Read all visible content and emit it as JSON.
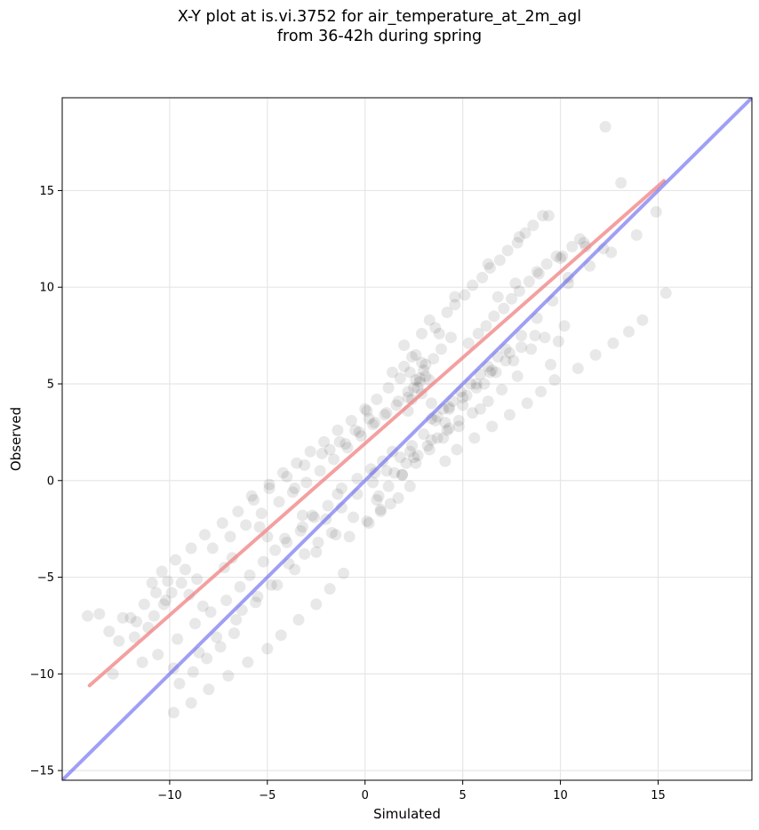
{
  "chart_data": {
    "type": "scatter",
    "title": [
      "X-Y plot at is.vi.3752 for air_temperature_at_2m_agl",
      "from 36-42h during spring"
    ],
    "xlabel": "Simulated",
    "ylabel": "Observed",
    "xlim": [
      -15.5,
      19.8
    ],
    "ylim": [
      -15.5,
      19.8
    ],
    "xticks": [
      -10,
      -5,
      0,
      5,
      10,
      15
    ],
    "yticks": [
      -15,
      -10,
      -5,
      0,
      5,
      10,
      15
    ],
    "xtick_labels": [
      "−10",
      "−5",
      "0",
      "5",
      "10",
      "15"
    ],
    "ytick_labels": [
      "−15",
      "−10",
      "−5",
      "0",
      "5",
      "10",
      "15"
    ],
    "grid": true,
    "colors": {
      "points": "#000000",
      "fit_line": "#f08080",
      "identity_line": "#6b6bf0"
    },
    "fit_line": {
      "x": [
        -14.1,
        15.3
      ],
      "y": [
        -10.6,
        15.5
      ]
    },
    "identity_line": {
      "x": [
        -15.5,
        19.8
      ],
      "y": [
        -15.5,
        19.8
      ]
    },
    "series": [
      {
        "x": [
          12.3,
          15.4,
          14.9,
          13.1,
          13.9,
          12.6,
          11.2,
          10.4,
          9.8,
          9.9,
          9.5,
          -14.2,
          -13.6,
          -13.1,
          -12.4,
          -11.8,
          -11.1,
          -10.8,
          -10.3,
          -9.9,
          -9.4,
          -9.0,
          -8.3,
          -12.9,
          -11.4,
          -10.6,
          -9.6,
          -8.7,
          -7.9,
          -7.1,
          -6.4,
          -5.9,
          -5.2,
          -4.6,
          -4.1,
          -3.2,
          -2.7,
          -7.8,
          -6.9,
          -6.1,
          -5.3,
          -4.4,
          -3.7,
          -3.0,
          -2.3,
          -1.6,
          -0.9,
          -0.2,
          -5.8,
          -4.9,
          -4.2,
          -3.5,
          -2.8,
          -2.1,
          -1.4,
          -0.7,
          0.0,
          0.6,
          1.2,
          1.8,
          0.4,
          1.1,
          1.7,
          2.2,
          2.6,
          3.0,
          3.5,
          3.9,
          4.4,
          2.0,
          2.4,
          2.8,
          2.3,
          2.5,
          2.9,
          3.1,
          3.6,
          3.3,
          3.8,
          4.2,
          4.6,
          5.1,
          5.5,
          6.0,
          6.4,
          6.9,
          7.3,
          7.8,
          8.2,
          8.6,
          9.1,
          5.3,
          5.8,
          6.2,
          6.6,
          7.1,
          7.5,
          7.9,
          8.4,
          8.9,
          9.3,
          10.1,
          10.6,
          11.0,
          3.4,
          4.0,
          4.5,
          4.9,
          5.4,
          5.9,
          6.3,
          6.8,
          7.2,
          1.5,
          2.1,
          2.7,
          3.2,
          3.7,
          4.3,
          4.8,
          -1.2,
          -0.4,
          0.3,
          0.9,
          1.4,
          -1.9,
          -2.6,
          -3.3,
          -4.0,
          -1.0,
          -0.3,
          0.5,
          1.0,
          1.6,
          2.2,
          2.7,
          3.3,
          0.1,
          0.8,
          1.3,
          -3.9,
          -3.1,
          -2.4,
          -1.7,
          -6.7,
          -7.4,
          -8.1,
          -8.8,
          -9.5,
          -6.3,
          -5.5,
          -4.8,
          -9.2,
          -10.1,
          -10.7,
          -11.3,
          -12.0,
          -9.8,
          -8.5,
          -7.6,
          -6.6,
          -5.6,
          -4.5,
          -3.6,
          -2.5,
          -1.5,
          -0.6,
          0.7,
          1.9,
          2.5,
          3.4,
          4.1,
          5.0,
          5.7,
          6.5,
          7.4,
          8.0,
          8.8,
          9.6,
          10.4,
          11.5,
          12.2,
          -10.9,
          -10.4,
          -9.7,
          -8.9,
          -8.2,
          -7.3,
          -6.5,
          -5.7,
          -4.9,
          -4.0,
          -3.1,
          -2.2,
          -1.3,
          -0.5,
          0.2,
          2.0,
          2.6,
          3.1,
          2.8,
          2.4,
          2.2,
          2.9,
          3.4,
          3.7,
          4.3,
          5.2,
          6.1,
          6.7,
          7.6,
          8.5,
          9.2,
          10.2,
          -0.8,
          0.2,
          0.8,
          1.7,
          2.3,
          -1.1,
          -1.8,
          -2.5,
          -3.4,
          -4.3,
          -5.0,
          -6.0,
          -7.0,
          -8.0,
          -8.9,
          -9.8,
          4.1,
          4.7,
          5.6,
          6.5,
          7.4,
          8.3,
          9.0,
          9.7,
          10.9,
          11.8,
          12.7,
          13.5,
          14.2,
          6.8,
          7.7,
          8.8,
          10.0,
          11.3,
          0.6,
          1.2,
          1.9,
          2.6,
          3.3,
          4.0,
          4.8,
          5.5,
          6.3,
          7.0,
          7.8,
          -2.0,
          -1.2,
          -0.4,
          0.4,
          1.1,
          1.8,
          2.4,
          3.0,
          3.6,
          4.3,
          5.0,
          5.7,
          6.4,
          7.2,
          8.0,
          8.7,
          -7.2,
          -5.4,
          -3.6,
          -1.8,
          0.1,
          1.4,
          2.9,
          4.6,
          6.3,
          7.9,
          9.4,
          -12.6,
          -11.7,
          -10.2,
          -8.6,
          -6.8,
          -5.0,
          -3.2,
          -1.4,
          0.5,
          2.3,
          4.2,
          5.9
        ],
        "y": [
          18.3,
          9.7,
          13.9,
          15.4,
          12.7,
          11.8,
          12.3,
          10.5,
          11.6,
          7.2,
          6.0,
          -7.0,
          -6.9,
          -7.8,
          -7.1,
          -8.1,
          -7.6,
          -7.0,
          -6.4,
          -5.8,
          -5.3,
          -5.9,
          -6.5,
          -10.0,
          -9.4,
          -9.0,
          -8.2,
          -7.4,
          -6.8,
          -6.2,
          -5.5,
          -4.9,
          -4.2,
          -3.6,
          -3.0,
          -2.4,
          -1.8,
          -3.5,
          -2.9,
          -2.3,
          -1.7,
          -1.1,
          -0.6,
          -0.1,
          0.5,
          1.1,
          1.7,
          2.3,
          -0.8,
          -0.2,
          0.4,
          0.9,
          1.5,
          2.0,
          2.6,
          3.1,
          3.7,
          4.2,
          4.8,
          5.3,
          2.9,
          3.5,
          4.1,
          4.6,
          5.2,
          5.7,
          6.3,
          6.8,
          7.4,
          5.9,
          6.4,
          5.1,
          5.6,
          4.8,
          6.1,
          5.4,
          7.9,
          8.3,
          7.6,
          8.7,
          9.1,
          9.6,
          10.1,
          10.5,
          11.0,
          11.4,
          11.9,
          12.3,
          12.8,
          13.2,
          13.7,
          7.1,
          7.6,
          8.0,
          8.5,
          8.9,
          9.4,
          9.8,
          10.3,
          10.7,
          11.2,
          11.6,
          12.1,
          12.5,
          3.2,
          3.7,
          4.1,
          4.6,
          5.0,
          5.5,
          5.9,
          6.4,
          6.8,
          0.4,
          0.9,
          1.3,
          1.8,
          2.2,
          2.7,
          3.1,
          -0.4,
          0.1,
          0.6,
          1.0,
          1.5,
          -1.3,
          -1.9,
          -2.6,
          -3.2,
          1.9,
          2.5,
          3.0,
          3.4,
          3.9,
          4.3,
          4.8,
          5.2,
          -2.1,
          -1.6,
          -1.2,
          -4.3,
          -3.8,
          -3.2,
          -2.7,
          -7.9,
          -8.6,
          -9.2,
          -9.9,
          -10.5,
          -6.7,
          -6.0,
          -5.4,
          -4.6,
          -5.2,
          -5.8,
          -6.4,
          -7.1,
          -9.7,
          -8.9,
          -8.1,
          -7.2,
          -6.3,
          -5.4,
          -4.6,
          -3.7,
          -2.8,
          -1.9,
          -0.8,
          0.3,
          1.2,
          2.1,
          3.0,
          3.9,
          4.8,
          5.7,
          6.6,
          7.5,
          8.4,
          9.3,
          10.2,
          11.1,
          12.0,
          -5.3,
          -4.7,
          -4.1,
          -3.5,
          -2.8,
          -2.2,
          -1.6,
          -1.0,
          -0.4,
          0.2,
          0.8,
          1.4,
          2.0,
          2.6,
          3.2,
          7.0,
          6.5,
          6.0,
          5.3,
          4.2,
          3.6,
          4.5,
          4.0,
          3.3,
          3.8,
          4.4,
          5.0,
          5.6,
          6.2,
          6.8,
          7.4,
          8.0,
          -2.9,
          -2.2,
          -1.5,
          -0.9,
          -0.3,
          -4.8,
          -5.6,
          -6.4,
          -7.2,
          -8.0,
          -8.7,
          -9.4,
          -10.1,
          -10.8,
          -11.5,
          -12.0,
          1.0,
          1.6,
          2.2,
          2.8,
          3.4,
          4.0,
          4.6,
          5.2,
          5.8,
          6.5,
          7.1,
          7.7,
          8.3,
          9.5,
          10.2,
          10.8,
          11.5,
          12.1,
          -1.0,
          -0.3,
          0.3,
          0.9,
          1.6,
          2.2,
          2.8,
          3.5,
          4.1,
          4.7,
          5.4,
          -2.0,
          -1.4,
          -0.7,
          -0.1,
          0.5,
          1.2,
          1.8,
          2.4,
          3.1,
          3.7,
          4.3,
          5.0,
          5.6,
          6.2,
          6.9,
          7.5,
          -4.5,
          -2.4,
          -0.4,
          1.6,
          3.6,
          5.6,
          7.6,
          9.5,
          11.2,
          12.6,
          13.7,
          -8.3,
          -7.3,
          -6.2,
          -5.1,
          -4.0,
          -2.9,
          -1.8,
          -0.7,
          0.4,
          1.5,
          2.6,
          3.7
        ]
      }
    ]
  }
}
